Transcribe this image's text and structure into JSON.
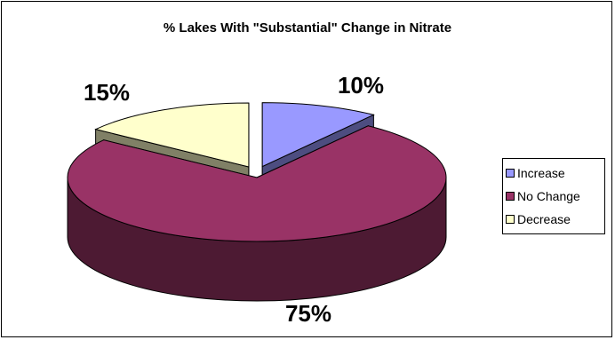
{
  "chart_data": {
    "type": "pie",
    "title": "% Lakes With \"Substantial\" Change in Nitrate",
    "three_d": true,
    "slices": [
      {
        "name": "Increase",
        "value": 10,
        "label": "10%",
        "color": "#9999ff",
        "side_color": "#4d4d80",
        "exploded": true
      },
      {
        "name": "No Change",
        "value": 75,
        "label": "75%",
        "color": "#993366",
        "side_color": "#4d1a33",
        "exploded": false
      },
      {
        "name": "Decrease",
        "value": 15,
        "label": "15%",
        "color": "#ffffcc",
        "side_color": "#808066",
        "exploded": true
      }
    ],
    "legend_position": "right"
  }
}
